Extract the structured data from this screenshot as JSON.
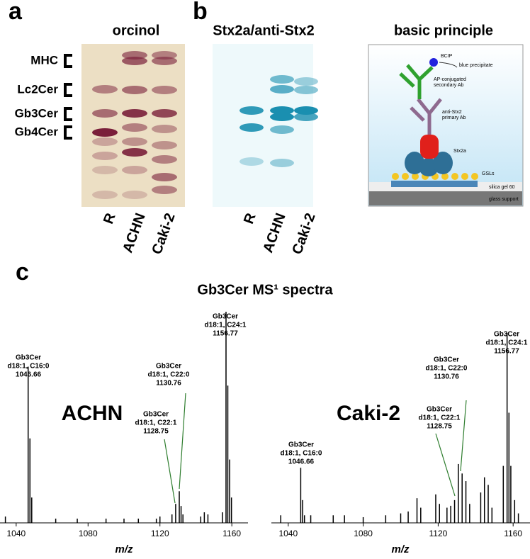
{
  "panels": {
    "a": {
      "label": "a",
      "title": "orcinol",
      "bands": [
        "MHC",
        "Lc2Cer",
        "Gb3Cer",
        "Gb4Cer"
      ],
      "lanes": [
        "R",
        "ACHN",
        "Caki-2"
      ]
    },
    "b": {
      "label": "b",
      "title": "Stx2a/anti-Stx2",
      "lanes": [
        "R",
        "ACHN",
        "Caki-2"
      ]
    },
    "principle": {
      "title": "basic principle",
      "labels": [
        "BCIP",
        "blue precipitate",
        "AP-conjugated",
        "secondary Ab",
        "anti-Stx2",
        "primary Ab",
        "Stx2a",
        "GSLs",
        "silica gel 60",
        "glass support"
      ]
    },
    "c": {
      "label": "c",
      "title": "Gb3Cer MS¹ spectra"
    }
  },
  "chart_data": [
    {
      "type": "bar",
      "label": "ACHN",
      "xlabel": "m/z",
      "color": "#000000",
      "xlim": [
        1031,
        1169
      ],
      "xticks": [
        1040,
        1080,
        1120,
        1160
      ],
      "ylim": [
        0,
        100
      ],
      "x": [
        1034,
        1046.66,
        1047.66,
        1048.66,
        1062,
        1074,
        1090,
        1100,
        1108,
        1118,
        1120,
        1126.7,
        1128.75,
        1130.76,
        1131.76,
        1132.8,
        1142.7,
        1144.7,
        1146.7,
        1154.75,
        1156.77,
        1157.77,
        1158.77,
        1159.8
      ],
      "values": [
        3,
        74,
        40,
        12,
        2,
        2,
        2,
        2,
        2,
        2,
        3,
        4,
        9,
        15,
        8,
        4,
        3,
        5,
        4,
        5,
        100,
        65,
        30,
        12
      ],
      "annotations": [
        {
          "lines": [
            "Gb3Cer",
            "d18:1, C16:0",
            "1046.66"
          ]
        },
        {
          "lines": [
            "Gb3Cer",
            "d18:1, C22:1",
            "1128.75"
          ]
        },
        {
          "lines": [
            "Gb3Cer",
            "d18:1, C22:0",
            "1130.76"
          ]
        },
        {
          "lines": [
            "Gb3Cer",
            "d18:1, C24:1",
            "1156.77"
          ]
        }
      ]
    },
    {
      "type": "bar",
      "label": "Caki-2",
      "xlabel": "m/z",
      "color": "#000000",
      "xlim": [
        1031,
        1169
      ],
      "xticks": [
        1040,
        1080,
        1120,
        1160
      ],
      "ylim": [
        0,
        100
      ],
      "x": [
        1036,
        1046.66,
        1047.66,
        1048.66,
        1052,
        1064,
        1070,
        1080,
        1092,
        1100,
        1104,
        1108.7,
        1110.7,
        1118.7,
        1120.7,
        1124.7,
        1126.7,
        1128.75,
        1130.76,
        1132.78,
        1134.8,
        1136.8,
        1142.7,
        1144.7,
        1146.7,
        1148.7,
        1154.75,
        1156.77,
        1157.77,
        1158.77,
        1160.8,
        1162.8
      ],
      "values": [
        4,
        29,
        12,
        4,
        4,
        4,
        4,
        3,
        4,
        5,
        6,
        13,
        8,
        15,
        10,
        8,
        9,
        12,
        31,
        26,
        22,
        10,
        16,
        24,
        20,
        8,
        30,
        100,
        58,
        30,
        12,
        5
      ],
      "annotations": [
        {
          "lines": [
            "Gb3Cer",
            "d18:1, C16:0",
            "1046.66"
          ]
        },
        {
          "lines": [
            "Gb3Cer",
            "d18:1, C22:1",
            "1128.75"
          ]
        },
        {
          "lines": [
            "Gb3Cer",
            "d18:1, C22:0",
            "1130.76"
          ]
        },
        {
          "lines": [
            "Gb3Cer",
            "d18:1, C24:1",
            "1156.77"
          ]
        }
      ]
    }
  ]
}
